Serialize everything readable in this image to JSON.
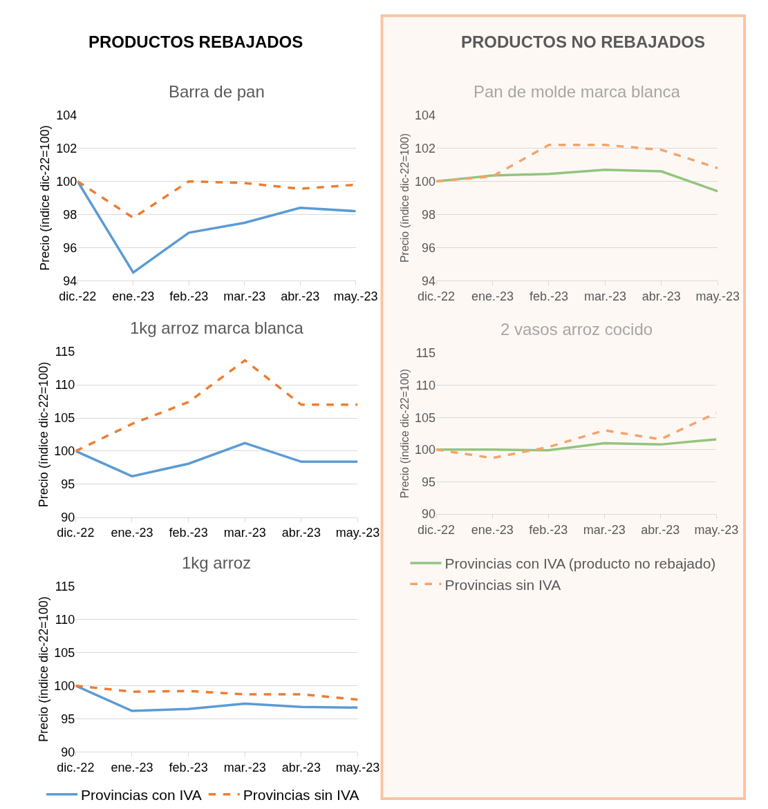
{
  "chart_data": [
    {
      "type": "other",
      "title": "PRODUCTOS REBAJADOS"
    },
    {
      "type": "other",
      "title": "PRODUCTOS NO REBAJADOS"
    },
    {
      "type": "line",
      "title": "Barra de pan",
      "ylabel": "Precio (índice dic-22=100)",
      "categories": [
        "dic.-22",
        "ene.-23",
        "feb.-23",
        "mar.-23",
        "abr.-23",
        "may.-23"
      ],
      "ylim": [
        94,
        104
      ],
      "yticks": [
        94,
        96,
        98,
        100,
        102,
        104
      ],
      "grid": "y",
      "series": [
        {
          "color": "#5b9bd5",
          "line_style": "solid",
          "values": [
            100,
            94.5,
            96.9,
            97.5,
            98.4,
            98.2
          ]
        },
        {
          "color": "#ed7d31",
          "line_style": "dashed",
          "values": [
            100,
            97.8,
            100,
            99.9,
            99.55,
            99.8
          ]
        }
      ]
    },
    {
      "type": "line",
      "title": "Pan de molde marca blanca",
      "ylabel": "Precio (índice dic-22=100)",
      "categories": [
        "dic.-22",
        "ene.-23",
        "feb.-23",
        "mar.-23",
        "abr.-23",
        "may.-23"
      ],
      "ylim": [
        94,
        104
      ],
      "yticks": [
        94,
        96,
        98,
        100,
        102,
        104
      ],
      "grid": "y",
      "series": [
        {
          "color": "#93c47d",
          "line_style": "solid",
          "values": [
            100,
            100.35,
            100.45,
            100.7,
            100.6,
            99.4
          ]
        },
        {
          "color": "#f4a46a",
          "line_style": "dashed",
          "values": [
            100,
            100.3,
            102.2,
            102.2,
            101.9,
            100.8
          ]
        }
      ]
    },
    {
      "type": "line",
      "title": "1kg arroz marca blanca",
      "ylabel": "Precio (índice dic-22=100)",
      "categories": [
        "dic.-22",
        "ene.-23",
        "feb.-23",
        "mar.-23",
        "abr.-23",
        "may.-23"
      ],
      "ylim": [
        90,
        115
      ],
      "yticks": [
        90,
        95,
        100,
        105,
        110,
        115
      ],
      "grid": "y",
      "series": [
        {
          "color": "#5b9bd5",
          "line_style": "solid",
          "values": [
            100,
            96.2,
            98.1,
            101.2,
            98.4,
            98.4
          ]
        },
        {
          "color": "#ed7d31",
          "line_style": "dashed",
          "values": [
            100,
            104.1,
            107.4,
            113.7,
            107,
            107
          ]
        }
      ]
    },
    {
      "type": "line",
      "title": "2 vasos arroz cocido",
      "ylabel": "Precio (índice dic-22=100)",
      "categories": [
        "dic.-22",
        "ene.-23",
        "feb.-23",
        "mar.-23",
        "abr.-23",
        "may.-23"
      ],
      "ylim": [
        90,
        115
      ],
      "yticks": [
        90,
        95,
        100,
        105,
        110,
        115
      ],
      "grid": "y",
      "legend": "bottom",
      "series": [
        {
          "name": "Provincias con IVA (producto no rebajado)",
          "color": "#93c47d",
          "line_style": "solid",
          "values": [
            100,
            100,
            99.9,
            101,
            100.8,
            101.6
          ]
        },
        {
          "name": "Provincias sin IVA",
          "color": "#f4a46a",
          "line_style": "dashed",
          "values": [
            100,
            98.7,
            100.4,
            103,
            101.6,
            105.7
          ]
        }
      ]
    },
    {
      "type": "line",
      "title": "1kg arroz",
      "ylabel": "Precio (índice dic-22=100)",
      "categories": [
        "dic.-22",
        "ene.-23",
        "feb.-23",
        "mar.-23",
        "abr.-23",
        "may.-23"
      ],
      "ylim": [
        90,
        115
      ],
      "yticks": [
        90,
        95,
        100,
        105,
        110,
        115
      ],
      "grid": "y",
      "legend": "bottom",
      "series": [
        {
          "name": "Provincias con IVA",
          "color": "#5b9bd5",
          "line_style": "solid",
          "values": [
            100,
            96.2,
            96.5,
            97.3,
            96.8,
            96.7
          ]
        },
        {
          "name": "Provincias sin IVA",
          "color": "#ed7d31",
          "line_style": "dashed",
          "values": [
            100,
            99.1,
            99.2,
            98.7,
            98.7,
            97.9
          ]
        }
      ]
    }
  ]
}
